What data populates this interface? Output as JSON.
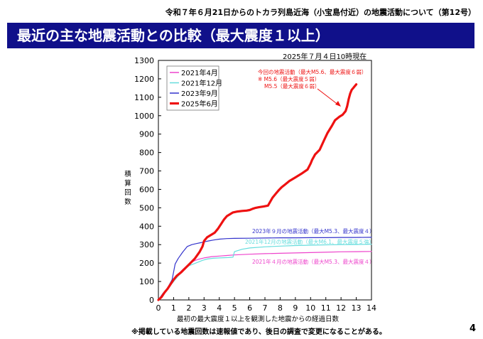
{
  "header": {
    "subtitle": "令和７年６月21日からのトカラ列島近海（小宝島付近）の地震活動について（第12号）",
    "banner": "最近の主な地震活動との比較（最大震度１以上）",
    "as_of": "2025年７月４日10時現在",
    "banner_color": "#10108a"
  },
  "footer": {
    "note": "※掲載している地震回数は速報値であり、後日の調査で変更になることがある。",
    "page_number": "4"
  },
  "chart_data": {
    "type": "line",
    "title": "",
    "xlabel": "最初の最大震度１以上を観測した地震からの経過日数",
    "ylabel": "積算回数",
    "xlim": [
      0,
      14
    ],
    "ylim": [
      0,
      1300
    ],
    "xticks": [
      0,
      1,
      2,
      3,
      4,
      5,
      6,
      7,
      8,
      9,
      10,
      11,
      12,
      13,
      14
    ],
    "yticks": [
      0,
      100,
      200,
      300,
      400,
      500,
      600,
      700,
      800,
      900,
      1000,
      1100,
      1200,
      1300
    ],
    "grid": false,
    "legend_position": "top-left",
    "series": [
      {
        "name": "2021年4月",
        "color": "#ee44cc",
        "width": 1.2,
        "x": [
          0,
          0.2,
          0.5,
          0.8,
          1.0,
          1.3,
          1.6,
          2.0,
          2.3,
          2.6,
          3.0,
          3.5,
          4.0,
          4.5,
          5.0,
          6.0,
          7.0,
          8.0,
          9.0,
          10.0,
          11.0,
          12.0,
          13.0,
          14.0
        ],
        "y": [
          0,
          20,
          50,
          90,
          115,
          140,
          165,
          195,
          210,
          220,
          228,
          235,
          238,
          241,
          244,
          248,
          251,
          253,
          255,
          257,
          259,
          261,
          262,
          263
        ]
      },
      {
        "name": "2021年12月",
        "color": "#66dddd",
        "width": 1.2,
        "x": [
          0,
          0.3,
          0.6,
          1.0,
          1.3,
          1.7,
          2.0,
          2.3,
          2.6,
          2.9,
          3.2,
          3.6,
          4.0,
          4.6,
          4.9,
          5.0,
          5.5,
          6.0,
          7.0,
          8.0,
          9.0,
          10.0,
          11.0,
          12.0,
          13.0,
          14.0
        ],
        "y": [
          0,
          30,
          60,
          100,
          130,
          165,
          185,
          195,
          205,
          215,
          222,
          226,
          228,
          230,
          232,
          262,
          275,
          282,
          288,
          292,
          295,
          297,
          299,
          300,
          301,
          302
        ]
      },
      {
        "name": "2023年9月",
        "color": "#3333cc",
        "width": 1.2,
        "x": [
          0,
          0.3,
          0.6,
          0.9,
          1.1,
          1.3,
          1.6,
          1.9,
          2.2,
          2.5,
          2.8,
          3.0,
          3.3,
          3.6,
          4.0,
          4.5,
          5.0,
          6.0,
          7.0,
          8.0,
          9.0,
          10.0,
          11.0,
          12.0,
          13.0,
          14.0
        ],
        "y": [
          0,
          35,
          65,
          110,
          195,
          225,
          260,
          290,
          300,
          306,
          311,
          315,
          320,
          325,
          330,
          333,
          334,
          335,
          336,
          337,
          337,
          338,
          338,
          339,
          339,
          340
        ]
      },
      {
        "name": "2025年6月",
        "color": "#ee1111",
        "width": 3.2,
        "x": [
          0,
          0.2,
          0.4,
          0.6,
          0.8,
          1.0,
          1.2,
          1.5,
          1.8,
          2.1,
          2.4,
          2.7,
          2.9,
          3.0,
          3.2,
          3.5,
          3.7,
          3.9,
          4.1,
          4.3,
          4.5,
          4.7,
          4.9,
          5.2,
          5.5,
          5.8,
          6.0,
          6.2,
          6.4,
          6.6,
          6.9,
          7.2,
          7.5,
          7.7,
          7.9,
          8.1,
          8.3,
          8.6,
          9.0,
          9.4,
          9.8,
          10.0,
          10.1,
          10.3,
          10.6,
          10.9,
          11.1,
          11.4,
          11.6,
          11.9,
          12.1,
          12.3,
          12.4,
          12.5,
          12.6,
          12.7,
          12.8,
          12.9,
          13.0
        ],
        "y": [
          0,
          15,
          40,
          60,
          85,
          110,
          130,
          150,
          175,
          200,
          225,
          260,
          290,
          320,
          340,
          355,
          365,
          385,
          410,
          435,
          455,
          465,
          475,
          480,
          483,
          485,
          488,
          495,
          500,
          503,
          507,
          512,
          555,
          575,
          595,
          612,
          625,
          645,
          665,
          685,
          708,
          740,
          760,
          790,
          815,
          870,
          905,
          945,
          975,
          995,
          1005,
          1025,
          1050,
          1090,
          1120,
          1140,
          1150,
          1160,
          1170
        ]
      }
    ],
    "annotations": {
      "current_main": "今回の地震活動（最大M5.6、最大震度６弱）",
      "current_sub1": "※ M5.6（最大震度５弱）",
      "current_sub2": "M5.5（最大震度６弱）",
      "sep2023": "2023年９月の地震活動（最大M5.3、最大震度４）",
      "dec2021": "2021年12月の地震活動（最大M6.1、最大震度５強）",
      "apr2021": "2021年４月の地震活動（最大M5.3、最大震度４）"
    }
  }
}
